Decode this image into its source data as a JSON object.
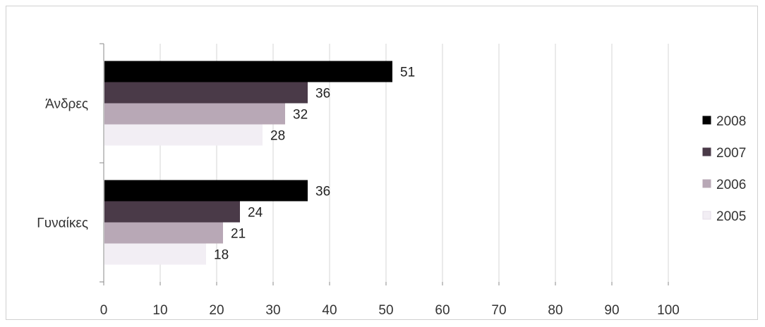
{
  "chart_data": {
    "type": "bar",
    "orientation": "horizontal",
    "title": "",
    "xlabel": "",
    "ylabel": "",
    "categories": [
      "Άνδρες",
      "Γυναίκες"
    ],
    "series": [
      {
        "name": "2008",
        "values": [
          51,
          36
        ],
        "color": "#000000"
      },
      {
        "name": "2007",
        "values": [
          36,
          24
        ],
        "color": "#4a3a48"
      },
      {
        "name": "2006",
        "values": [
          32,
          21
        ],
        "color": "#b8a8b6"
      },
      {
        "name": "2005",
        "values": [
          28,
          18
        ],
        "color": "#f2eef4"
      }
    ],
    "xlim": [
      0,
      100
    ],
    "xticks": [
      "0",
      "10",
      "20",
      "30",
      "40",
      "50",
      "60",
      "70",
      "80",
      "90",
      "100"
    ],
    "grid": true,
    "legend_position": "right"
  }
}
